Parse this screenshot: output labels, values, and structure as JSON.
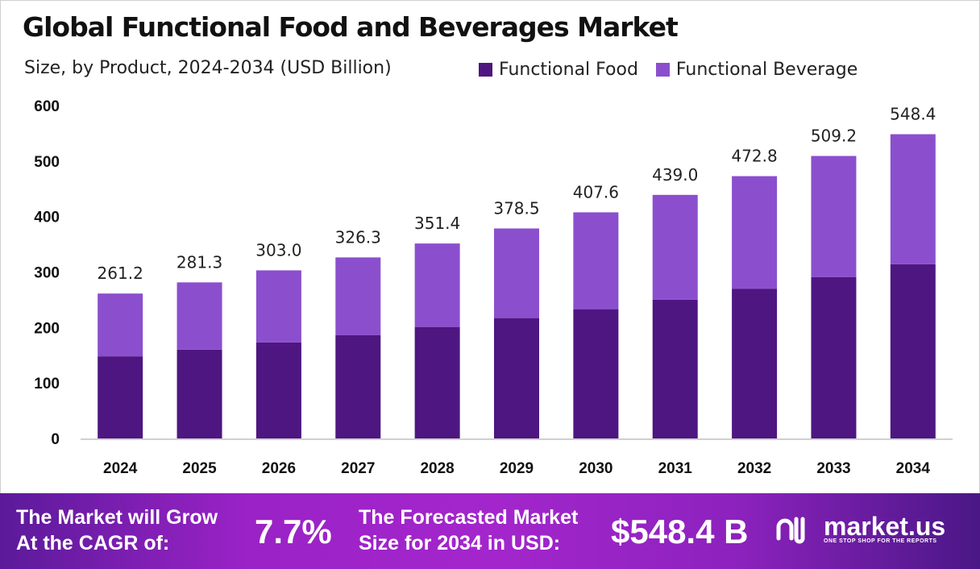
{
  "title": "Global Functional Food and Beverages Market",
  "subtitle": "Size, by Product, 2024-2034 (USD Billion)",
  "colors": {
    "food": "#4e1681",
    "beverage": "#8b4fce"
  },
  "chart_data": {
    "type": "bar",
    "stacked": true,
    "title": "Global Functional Food and Beverages Market",
    "subtitle": "Size, by Product, 2024-2034 (USD Billion)",
    "categories": [
      "2024",
      "2025",
      "2026",
      "2027",
      "2028",
      "2029",
      "2030",
      "2031",
      "2032",
      "2033",
      "2034"
    ],
    "series": [
      {
        "name": "Functional Food",
        "color": "#4e1681",
        "values": [
          148,
          160,
          173,
          186,
          201,
          217,
          233,
          250,
          270,
          291,
          314
        ]
      },
      {
        "name": "Functional Beverage",
        "color": "#8b4fce",
        "values": [
          113.2,
          121.3,
          130.0,
          140.3,
          150.4,
          161.5,
          174.6,
          189.0,
          202.8,
          218.2,
          234.4
        ]
      }
    ],
    "totals": [
      "261.2",
      "281.3",
      "303.0",
      "326.3",
      "351.4",
      "378.5",
      "407.6",
      "439.0",
      "472.8",
      "509.2",
      "548.4"
    ],
    "yticks": [
      "0",
      "100",
      "200",
      "300",
      "400",
      "500",
      "600"
    ],
    "ylim": [
      0,
      600
    ],
    "grid": false,
    "legend": "top-right"
  },
  "footer": {
    "cagr_label_1": "The Market will Grow",
    "cagr_label_2": "At the CAGR of:",
    "cagr_value": "7.7%",
    "forecast_label_1": "The Forecasted Market",
    "forecast_label_2": "Size for 2034 in USD:",
    "forecast_value": "$548.4 B",
    "logo_text": "market.us",
    "logo_tagline": "ONE STOP SHOP FOR THE REPORTS"
  }
}
